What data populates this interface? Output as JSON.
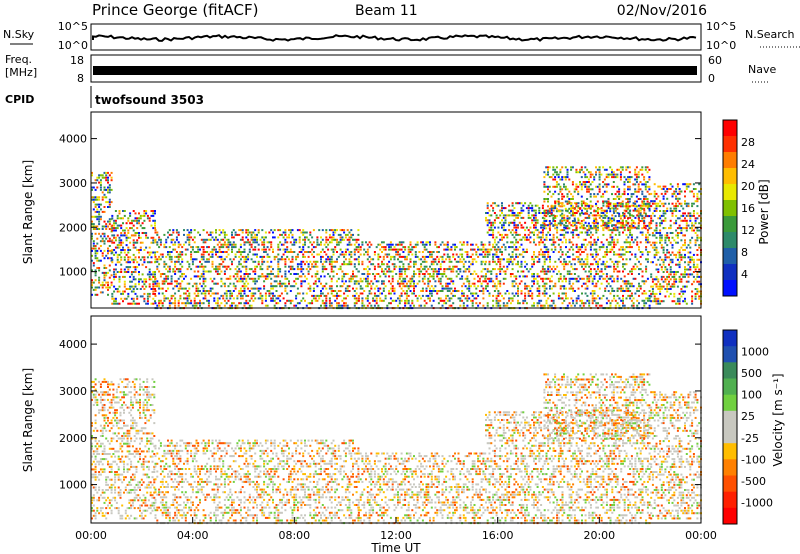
{
  "header": {
    "station": "Prince George (fitACF)",
    "beam": "Beam 11",
    "date": "02/Nov/2016"
  },
  "noise_panel": {
    "left_label": "N.Sky",
    "right_label": "N.Search",
    "tick_top": "10^5",
    "tick_bottom": "10^0",
    "right_tick_top": "10^5",
    "right_tick_bottom": "10^0"
  },
  "freq_panel": {
    "left_label_1": "Freq.",
    "left_label_2": "[MHz]",
    "tick_top": "18",
    "tick_bottom": "8",
    "right_label": "Nave",
    "right_tick_top": "60",
    "right_tick_bottom": "0"
  },
  "cpid_panel": {
    "label": "CPID",
    "value": "twofsound 3503"
  },
  "chart_data": [
    {
      "type": "heatmap",
      "name": "power",
      "ylabel": "Slant Range [km]",
      "ylim": [
        180,
        4600
      ],
      "y_ticks": [
        1000,
        2000,
        3000,
        4000
      ],
      "colorbar": {
        "label": "Power [dB]",
        "ticks": [
          "28",
          "24",
          "20",
          "16",
          "12",
          "8",
          "4"
        ],
        "colors": [
          "#ff0000",
          "#ff3000",
          "#ff7d00",
          "#ffbd00",
          "#e8e800",
          "#7fc000",
          "#3a9a3a",
          "#2d8a6a",
          "#1f5fa8",
          "#1030c0",
          "#0010ff"
        ]
      },
      "echo_regions": [
        {
          "t0": 0.0,
          "t1": 0.8,
          "r0": 500,
          "r1": 3300
        },
        {
          "t0": 0.8,
          "t1": 2.5,
          "r0": 300,
          "r1": 2400
        },
        {
          "t0": 2.5,
          "t1": 10.5,
          "r0": 200,
          "r1": 2000
        },
        {
          "t0": 10.5,
          "t1": 15.5,
          "r0": 200,
          "r1": 1700
        },
        {
          "t0": 15.5,
          "t1": 22.0,
          "r0": 200,
          "r1": 2600
        },
        {
          "t0": 17.8,
          "t1": 22.0,
          "r0": 2000,
          "r1": 3400
        },
        {
          "t0": 22.0,
          "t1": 24.0,
          "r0": 300,
          "r1": 3000
        }
      ]
    },
    {
      "type": "heatmap",
      "name": "velocity",
      "ylabel": "Slant Range [km]",
      "xlabel": "Time UT",
      "ylim": [
        180,
        4600
      ],
      "y_ticks": [
        1000,
        2000,
        3000,
        4000
      ],
      "x_ticks": [
        "00:00",
        "04:00",
        "08:00",
        "12:00",
        "16:00",
        "20:00",
        "00:00"
      ],
      "x_range_hours": [
        0,
        24
      ],
      "colorbar": {
        "label": "Velocity [m s⁻¹]",
        "ticks": [
          "1000",
          "500",
          "100",
          "25",
          "-25",
          "-100",
          "-500",
          "-1000"
        ],
        "colors": [
          "#1030c0",
          "#2050b0",
          "#3a8a5a",
          "#50b050",
          "#70d040",
          "#c8c8c0",
          "#c8c8c0",
          "#ffbd00",
          "#ff8000",
          "#ff5000",
          "#ff2000",
          "#ff0000"
        ]
      },
      "echo_regions": [
        {
          "t0": 0.0,
          "t1": 2.5,
          "r0": 300,
          "r1": 3300
        },
        {
          "t0": 2.5,
          "t1": 10.5,
          "r0": 200,
          "r1": 2000
        },
        {
          "t0": 10.5,
          "t1": 15.5,
          "r0": 200,
          "r1": 1700
        },
        {
          "t0": 15.5,
          "t1": 22.0,
          "r0": 200,
          "r1": 2600
        },
        {
          "t0": 17.8,
          "t1": 22.0,
          "r0": 2000,
          "r1": 3400
        },
        {
          "t0": 22.0,
          "t1": 24.0,
          "r0": 300,
          "r1": 3000
        }
      ]
    }
  ]
}
